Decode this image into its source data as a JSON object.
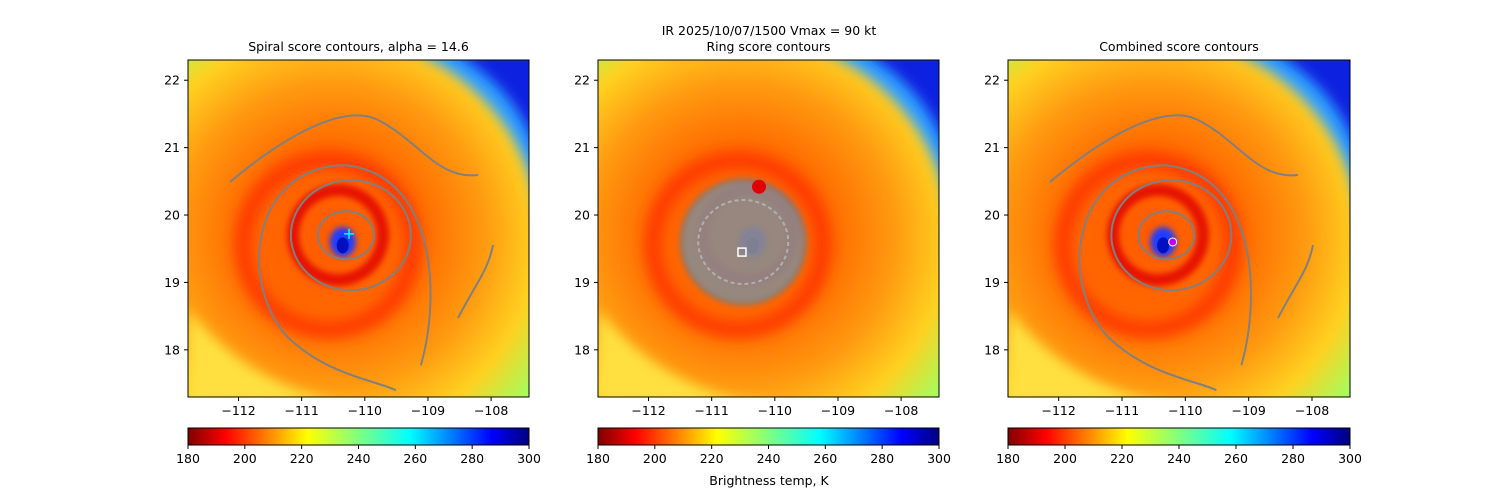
{
  "figure": {
    "suptitle_line1": "IR  2025/10/07/1500    Vmax = 90 kt",
    "colorbar_label": "Brightness temp, K"
  },
  "chart_data": [
    {
      "type": "heatmap",
      "title": "Spiral score contours, alpha = 14.6",
      "xlabel": "",
      "ylabel": "",
      "xlim": [
        -112.8,
        -107.4
      ],
      "ylim": [
        17.3,
        22.3
      ],
      "xticks": [
        -112,
        -111,
        -110,
        -109,
        -108
      ],
      "yticks": [
        18,
        19,
        20,
        21,
        22
      ],
      "xticklabels": [
        "−112",
        "−111",
        "−110",
        "−109",
        "−108"
      ],
      "yticklabels": [
        "18",
        "19",
        "20",
        "21",
        "22"
      ],
      "center": [
        -110.25,
        19.72
      ],
      "center_marker": "cyan plus",
      "contours": [
        "spiral-arcs"
      ],
      "colorbar": {
        "min": 180,
        "max": 300,
        "ticks": [
          180,
          200,
          220,
          240,
          260,
          280,
          300
        ],
        "ticklabels": [
          "180",
          "200",
          "220",
          "240",
          "260",
          "280",
          "300"
        ],
        "cmap": "jet_r"
      }
    },
    {
      "type": "heatmap",
      "title": "Ring score contours",
      "xlabel": "",
      "ylabel": "",
      "xlim": [
        -112.8,
        -107.4
      ],
      "ylim": [
        17.3,
        22.3
      ],
      "xticks": [
        -112,
        -111,
        -110,
        -109,
        -108
      ],
      "yticks": [
        18,
        19,
        20,
        21,
        22
      ],
      "xticklabels": [
        "−112",
        "−111",
        "−110",
        "−109",
        "−108"
      ],
      "yticklabels": [
        "18",
        "19",
        "20",
        "21",
        "22"
      ],
      "center": [
        -110.52,
        19.45
      ],
      "center_marker": "white square",
      "contours": [
        "dense-ring-blob"
      ],
      "colorbar": {
        "min": 180,
        "max": 300,
        "ticks": [
          180,
          200,
          220,
          240,
          260,
          280,
          300
        ],
        "ticklabels": [
          "180",
          "200",
          "220",
          "240",
          "260",
          "280",
          "300"
        ],
        "cmap": "jet_r"
      }
    },
    {
      "type": "heatmap",
      "title": "Combined score contours",
      "xlabel": "",
      "ylabel": "",
      "xlim": [
        -112.8,
        -107.4
      ],
      "ylim": [
        17.3,
        22.3
      ],
      "xticks": [
        -112,
        -111,
        -110,
        -109,
        -108
      ],
      "yticks": [
        18,
        19,
        20,
        21,
        22
      ],
      "xticklabels": [
        "−112",
        "−111",
        "−110",
        "−109",
        "−108"
      ],
      "yticklabels": [
        "18",
        "19",
        "20",
        "21",
        "22"
      ],
      "center": [
        -110.2,
        19.6
      ],
      "center_marker": "magenta circle",
      "contours": [
        "spiral-arcs"
      ],
      "colorbar": {
        "min": 180,
        "max": 300,
        "ticks": [
          180,
          200,
          220,
          240,
          260,
          280,
          300
        ],
        "ticklabels": [
          "180",
          "200",
          "220",
          "240",
          "260",
          "280",
          "300"
        ],
        "cmap": "jet_r"
      }
    }
  ]
}
